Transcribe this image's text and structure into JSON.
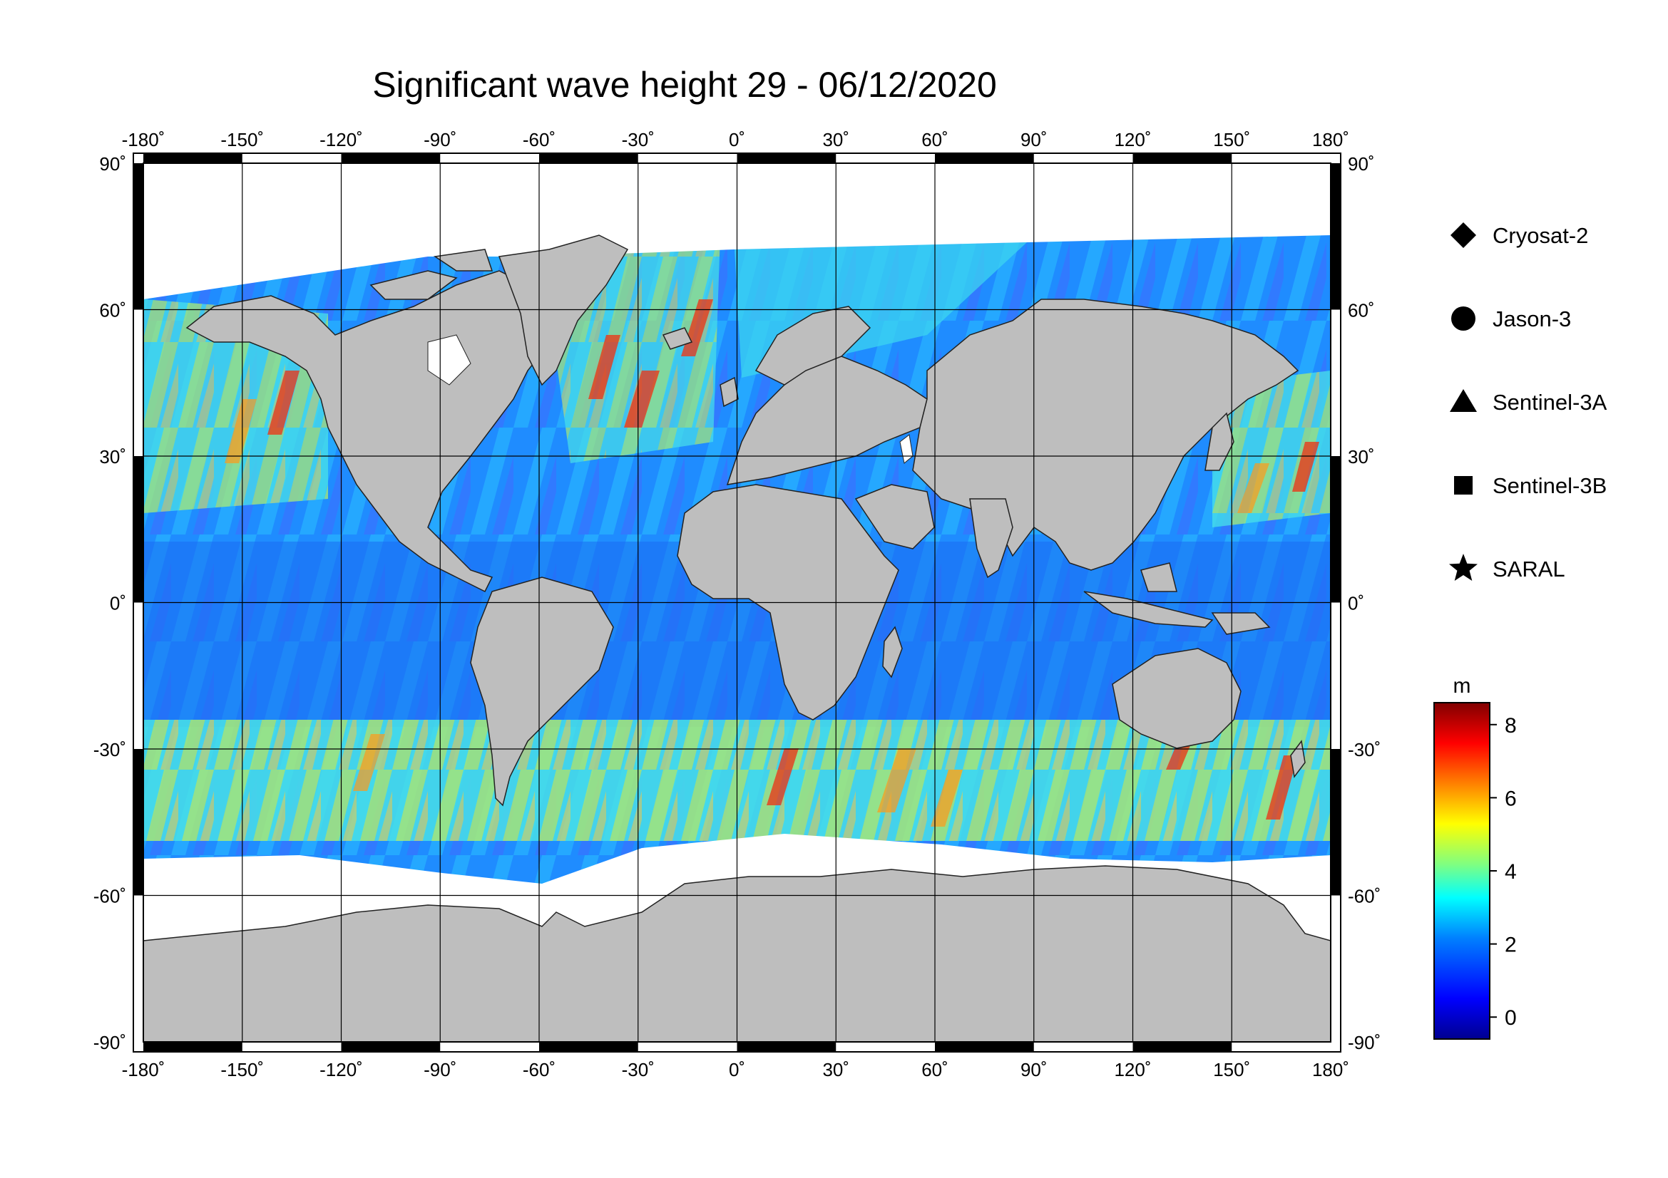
{
  "title": "Significant wave height 29 - 06/12/2020",
  "map": {
    "lon_ticks": [
      "-180˚",
      "-150˚",
      "-120˚",
      "-90˚",
      "-60˚",
      "-30˚",
      "0˚",
      "30˚",
      "60˚",
      "90˚",
      "120˚",
      "150˚",
      "180˚"
    ],
    "lat_ticks": [
      "90˚",
      "60˚",
      "30˚",
      "0˚",
      "-30˚",
      "-60˚",
      "-90˚"
    ],
    "colors": {
      "land": "#bebebe",
      "ice": "#ffffff",
      "frame": "#000000"
    }
  },
  "legend": [
    {
      "label": "Cryosat-2",
      "symbol": "diamond-icon"
    },
    {
      "label": "Jason-3",
      "symbol": "circle-icon"
    },
    {
      "label": "Sentinel-3A",
      "symbol": "triangle-icon"
    },
    {
      "label": "Sentinel-3B",
      "symbol": "square-icon"
    },
    {
      "label": "SARAL",
      "symbol": "star-icon"
    }
  ],
  "colorbar": {
    "unit": "m",
    "ticks": [
      "8",
      "6",
      "4",
      "2",
      "0"
    ],
    "min": -0.6,
    "max": 8.6,
    "colors": [
      "#00008f",
      "#0000ff",
      "#0080ff",
      "#00ffff",
      "#80ff80",
      "#ffff00",
      "#ff8000",
      "#ff0000",
      "#800000"
    ]
  }
}
